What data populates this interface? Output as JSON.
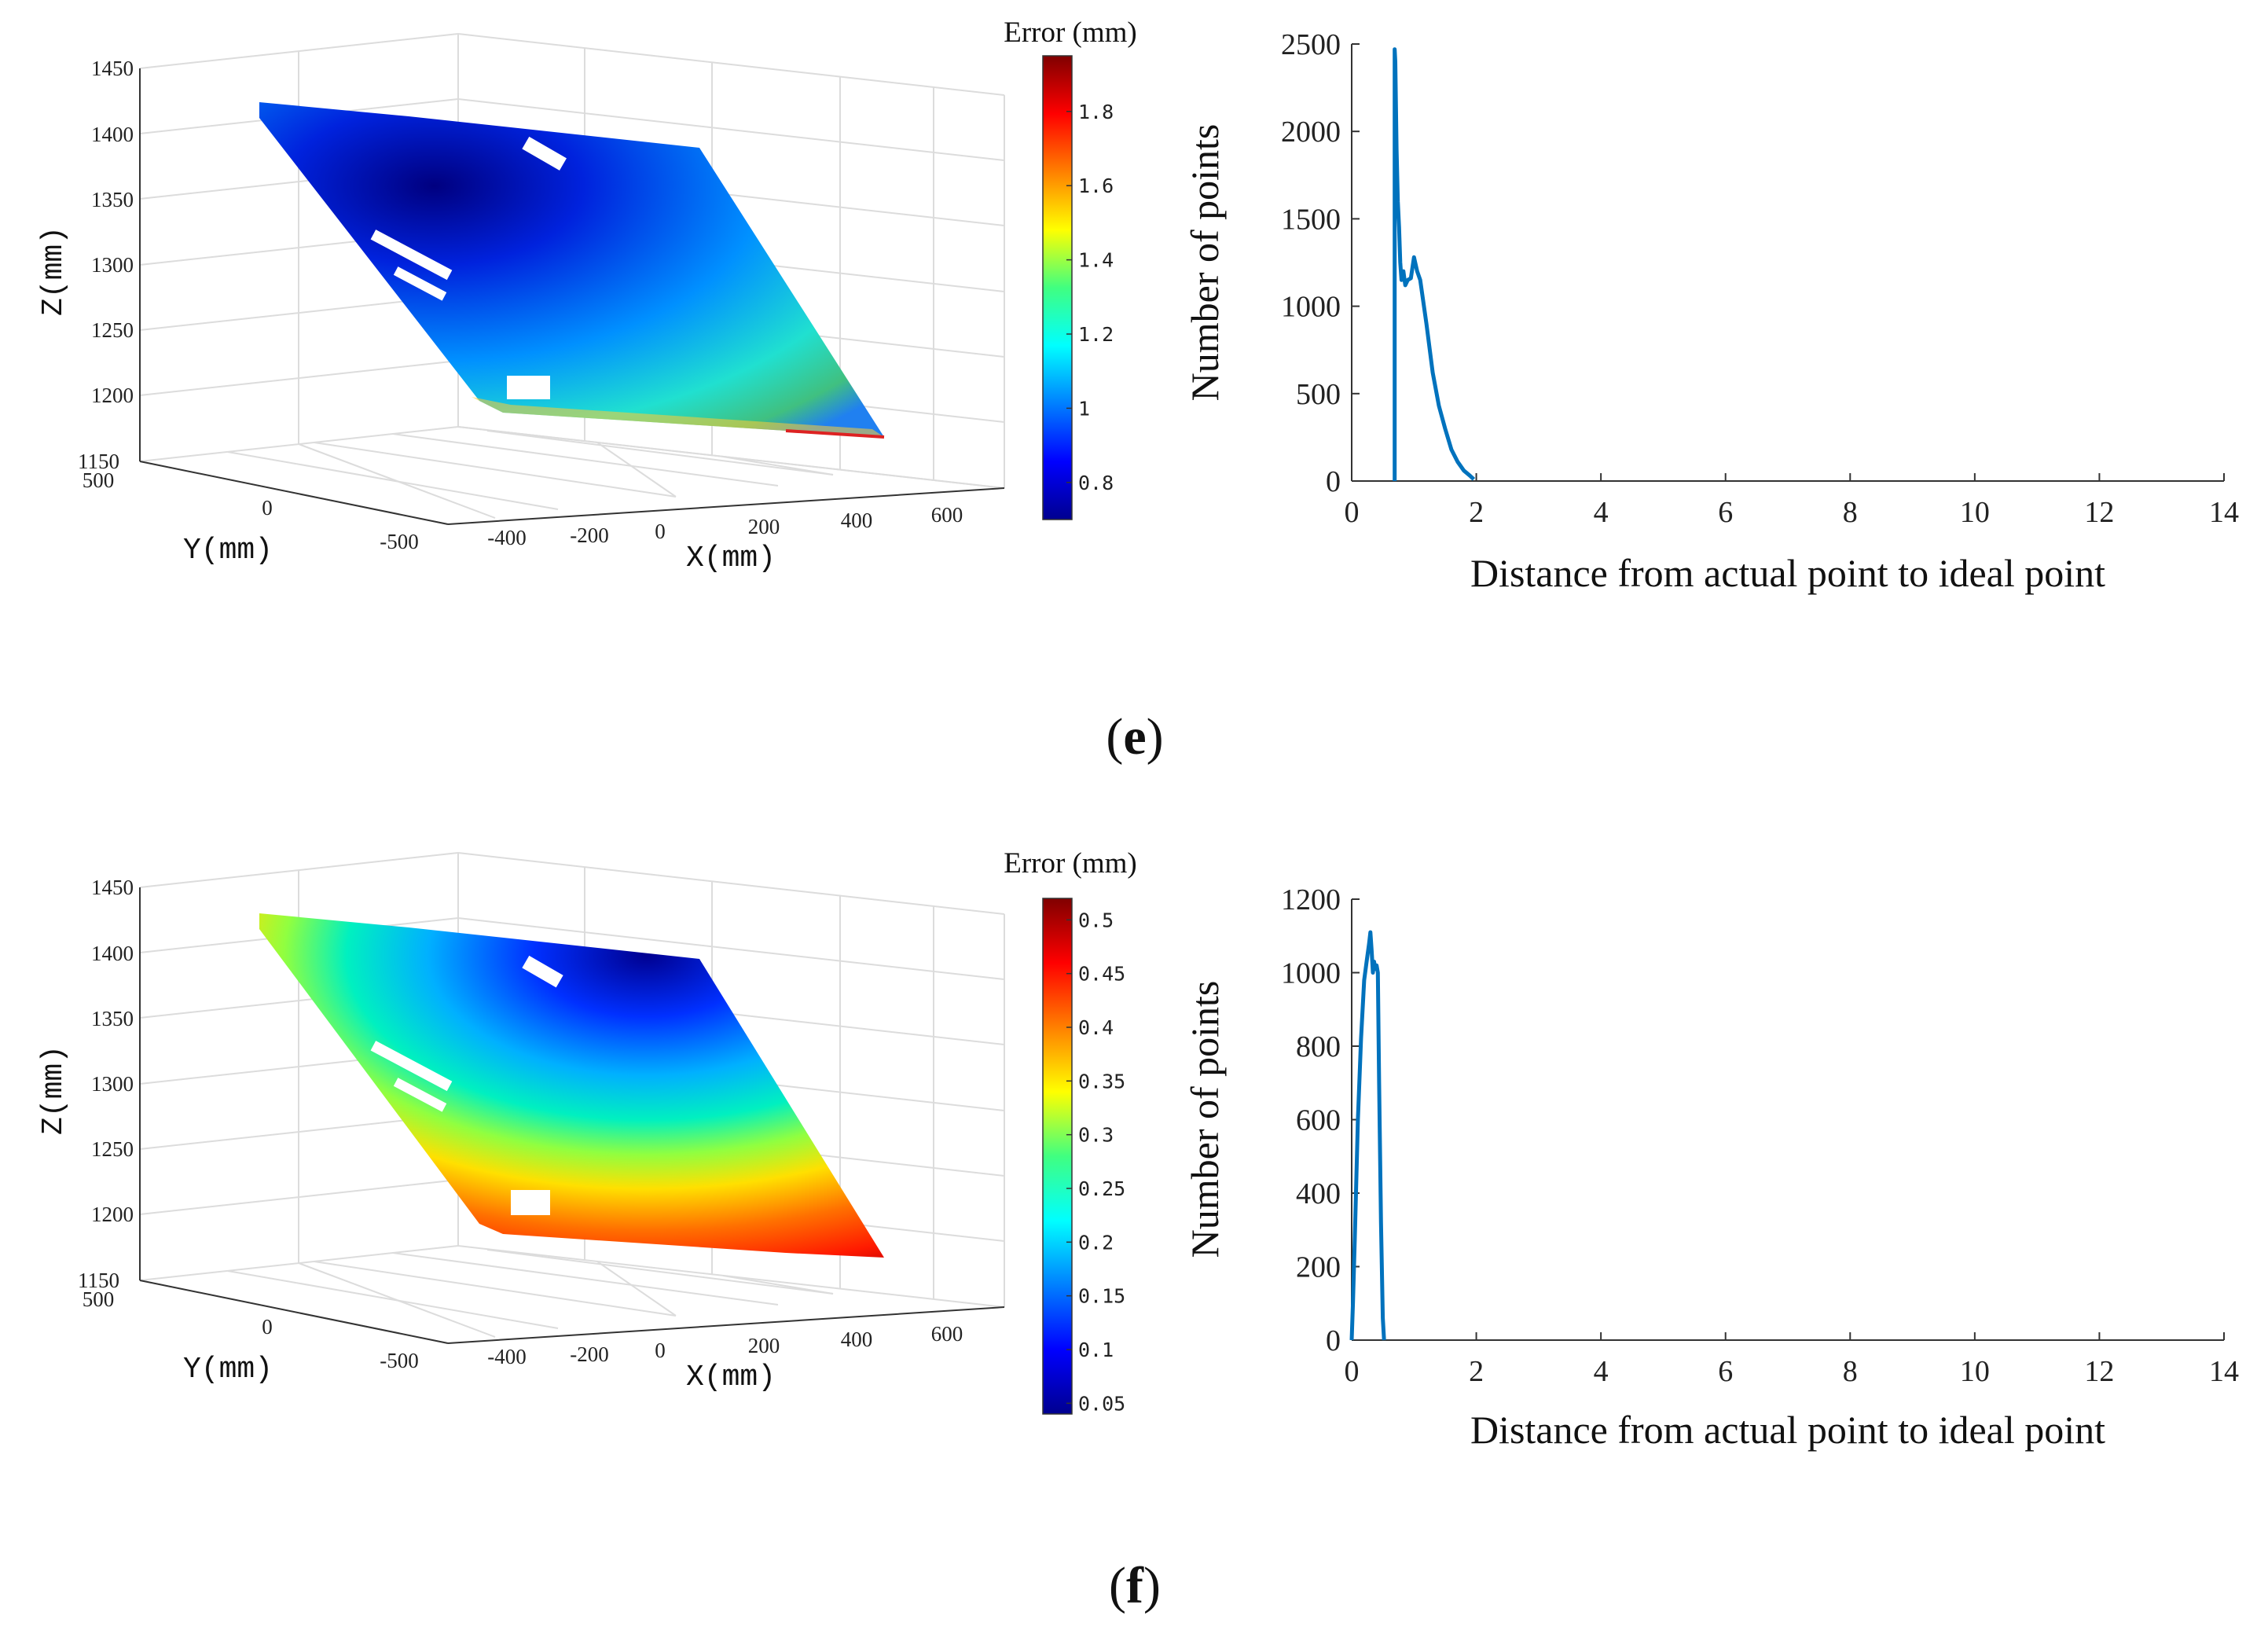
{
  "panels": [
    {
      "id": "e",
      "caption_letter": "e",
      "scatter3d": {
        "colorbar_title": "Error (mm)",
        "colorbar_ticks": [
          "1.8",
          "1.6",
          "1.4",
          "1.2",
          "1",
          "0.8"
        ],
        "colorbar_range": [
          0.7,
          1.95
        ],
        "colormap": "jet",
        "z_axis_label": "Z(mm)",
        "y_axis_label": "Y(mm)",
        "x_axis_label": "X(mm)",
        "z_ticks": [
          "1450",
          "1400",
          "1350",
          "1300",
          "1250",
          "1200",
          "1150"
        ],
        "y_ticks": [
          "500",
          "0",
          "-500"
        ],
        "x_ticks": [
          "-400",
          "-200",
          "0",
          "200",
          "400",
          "600"
        ]
      },
      "histogram": {
        "type": "line",
        "xlabel": "Distance from actual point to ideal point",
        "ylabel": "Number of points",
        "xlim": [
          0,
          14
        ],
        "ylim": [
          0,
          2500
        ],
        "x_ticks": [
          "0",
          "2",
          "4",
          "6",
          "8",
          "10",
          "12",
          "14"
        ],
        "y_ticks": [
          "0",
          "500",
          "1000",
          "1500",
          "2000",
          "2500"
        ],
        "line_color": "#0072BD"
      }
    },
    {
      "id": "f",
      "caption_letter": "f",
      "scatter3d": {
        "colorbar_title": "Error (mm)",
        "colorbar_ticks": [
          "0.5",
          "0.45",
          "0.4",
          "0.35",
          "0.3",
          "0.25",
          "0.2",
          "0.15",
          "0.1",
          "0.05"
        ],
        "colorbar_range": [
          0.04,
          0.52
        ],
        "colormap": "jet",
        "z_axis_label": "Z(mm)",
        "y_axis_label": "Y(mm)",
        "x_axis_label": "X(mm)",
        "z_ticks": [
          "1450",
          "1400",
          "1350",
          "1300",
          "1250",
          "1200",
          "1150"
        ],
        "y_ticks": [
          "500",
          "0",
          "-500"
        ],
        "x_ticks": [
          "-400",
          "-200",
          "0",
          "200",
          "400",
          "600"
        ]
      },
      "histogram": {
        "type": "line",
        "xlabel": "Distance from actual point to ideal point",
        "ylabel": "Number of points",
        "xlim": [
          0,
          14
        ],
        "ylim": [
          0,
          1200
        ],
        "x_ticks": [
          "0",
          "2",
          "4",
          "6",
          "8",
          "10",
          "12",
          "14"
        ],
        "y_ticks": [
          "0",
          "200",
          "400",
          "600",
          "800",
          "1000",
          "1200"
        ],
        "line_color": "#0072BD"
      }
    }
  ],
  "chart_data": [
    {
      "type": "scatter",
      "subtype": "3d-point-cloud",
      "xlabel": "X(mm)",
      "ylabel": "Y(mm)",
      "zlabel": "Z(mm)",
      "xlim": [
        -400,
        600
      ],
      "ylim": [
        -500,
        500
      ],
      "zlim": [
        1150,
        1450
      ],
      "colorbar_title": "Error (mm)",
      "colorbar_range": [
        0.7,
        1.95
      ],
      "grid": true
    },
    {
      "type": "line",
      "xlabel": "Distance from actual point to ideal point",
      "ylabel": "Number of points",
      "xlim": [
        0,
        14
      ],
      "ylim": [
        0,
        2500
      ],
      "grid": false,
      "series": [
        {
          "x": [
            0.69,
            0.69,
            0.7,
            0.72,
            0.74,
            0.76,
            0.78,
            0.8,
            0.83,
            0.86,
            0.9,
            0.95,
            1.0,
            1.05,
            1.1,
            1.2,
            1.3,
            1.4,
            1.5,
            1.6,
            1.7,
            1.8,
            1.9,
            1.96
          ],
          "y": [
            0,
            2470,
            2400,
            1900,
            1600,
            1450,
            1250,
            1150,
            1200,
            1120,
            1150,
            1160,
            1280,
            1200,
            1150,
            900,
            620,
            430,
            300,
            180,
            110,
            60,
            30,
            10
          ]
        }
      ]
    },
    {
      "type": "scatter",
      "subtype": "3d-point-cloud",
      "xlabel": "X(mm)",
      "ylabel": "Y(mm)",
      "zlabel": "Z(mm)",
      "xlim": [
        -400,
        600
      ],
      "ylim": [
        -500,
        500
      ],
      "zlim": [
        1150,
        1450
      ],
      "colorbar_title": "Error (mm)",
      "colorbar_range": [
        0.04,
        0.52
      ],
      "grid": true
    },
    {
      "type": "line",
      "xlabel": "Distance from actual point to ideal point",
      "ylabel": "Number of points",
      "xlim": [
        0,
        14
      ],
      "ylim": [
        0,
        1200
      ],
      "grid": false,
      "series": [
        {
          "x": [
            0.0,
            0.02,
            0.05,
            0.1,
            0.15,
            0.2,
            0.24,
            0.28,
            0.3,
            0.32,
            0.34,
            0.36,
            0.38,
            0.4,
            0.42,
            0.44,
            0.47,
            0.5,
            0.52
          ],
          "y": [
            0,
            100,
            280,
            600,
            820,
            980,
            1030,
            1080,
            1110,
            1060,
            1000,
            1030,
            1010,
            1020,
            1000,
            700,
            320,
            60,
            0
          ]
        }
      ]
    }
  ]
}
